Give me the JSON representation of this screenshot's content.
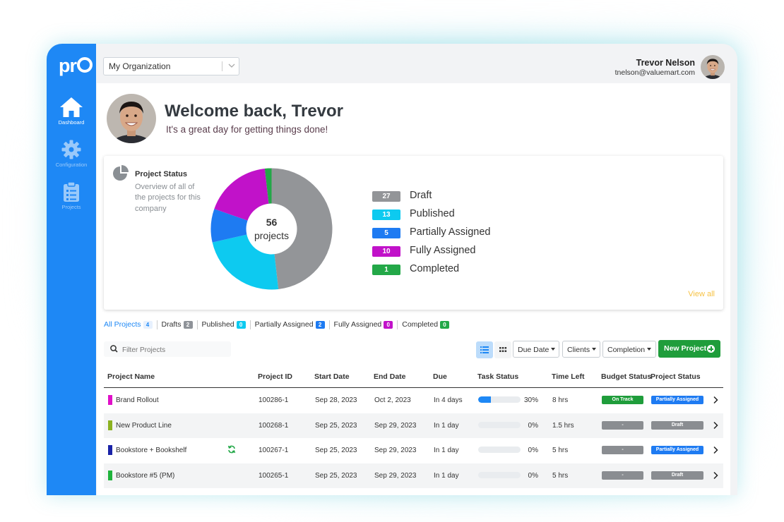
{
  "app": {
    "logo": "pr"
  },
  "sidebar": {
    "items": [
      {
        "label": "Dashboard",
        "icon": "home-icon",
        "active": true
      },
      {
        "label": "Configuration",
        "icon": "gear-icon",
        "active": false
      },
      {
        "label": "Projects",
        "icon": "clipboard-icon",
        "active": false
      }
    ]
  },
  "header": {
    "org_select": "My Organization",
    "user_name": "Trevor Nelson",
    "user_email": "tnelson@valuemart.com"
  },
  "welcome": {
    "title": "Welcome back, Trevor",
    "subtitle": "It's a great day for getting things done!"
  },
  "project_status": {
    "title": "Project Status",
    "description": "Overview of all of the projects for this company",
    "center_value": "56",
    "center_label": "projects",
    "view_all": "View all"
  },
  "chart_data": {
    "type": "pie",
    "total": 56,
    "slices": [
      {
        "label": "Draft",
        "value": 27,
        "color": "#939598"
      },
      {
        "label": "Published",
        "value": 13,
        "color": "#0dcaf0"
      },
      {
        "label": "Partially Assigned",
        "value": 5,
        "color": "#1e7bf2"
      },
      {
        "label": "Fully Assigned",
        "value": 10,
        "color": "#c112c9"
      },
      {
        "label": "Completed",
        "value": 1,
        "color": "#23a848"
      }
    ]
  },
  "filters": {
    "tabs": [
      {
        "label": "All Projects",
        "count": "4",
        "color": "#e7f1fe",
        "text": "#1e88f5",
        "active": true
      },
      {
        "label": "Drafts",
        "count": "2",
        "color": "#8f9399",
        "text": "#fff",
        "active": false
      },
      {
        "label": "Published",
        "count": "0",
        "color": "#0dcaf0",
        "text": "#fff",
        "active": false
      },
      {
        "label": "Partially Assigned",
        "count": "2",
        "color": "#1e7bf2",
        "text": "#fff",
        "active": false
      },
      {
        "label": "Fully Assigned",
        "count": "0",
        "color": "#c112c9",
        "text": "#fff",
        "active": false
      },
      {
        "label": "Completed",
        "count": "0",
        "color": "#23a848",
        "text": "#fff",
        "active": false
      }
    ],
    "search_placeholder": "Filter Projects",
    "due_date": "Due Date",
    "clients": "Clients",
    "completion": "Completion",
    "new_project": "New Project"
  },
  "table": {
    "columns": [
      "Project Name",
      "Project ID",
      "Start Date",
      "End Date",
      "Due",
      "Task Status",
      "Time Left",
      "Budget Status",
      "Project Status"
    ],
    "rows": [
      {
        "name": "Brand Rollout",
        "color": "#e010c8",
        "id": "100286-1",
        "start": "Sep 28, 2023",
        "end": "Oct 2, 2023",
        "due": "In 4 days",
        "progress": 30,
        "pct": "30%",
        "time_left": "8 hrs",
        "budget": "On Track",
        "budget_color": "#1f9d3b",
        "status": "Partially Assigned",
        "status_color": "#1e7bf2",
        "synced": false
      },
      {
        "name": "New Product Line",
        "color": "#8cb221",
        "id": "100268-1",
        "start": "Sep 25, 2023",
        "end": "Sep 29, 2023",
        "due": "In 1 day",
        "progress": 0,
        "pct": "0%",
        "time_left": "1.5 hrs",
        "budget": "-",
        "budget_color": "#8a8d91",
        "status": "Draft",
        "status_color": "#8a8d91",
        "synced": false
      },
      {
        "name": "Bookstore + Bookshelf",
        "color": "#1a23a8",
        "id": "100267-1",
        "start": "Sep 25, 2023",
        "end": "Sep 29, 2023",
        "due": "In 1 day",
        "progress": 0,
        "pct": "0%",
        "time_left": "5 hrs",
        "budget": "-",
        "budget_color": "#8a8d91",
        "status": "Partially Assigned",
        "status_color": "#1e7bf2",
        "synced": true
      },
      {
        "name": "Bookstore #5 (PM)",
        "color": "#1fb33c",
        "id": "100265-1",
        "start": "Sep 25, 2023",
        "end": "Sep 29, 2023",
        "due": "In 1 day",
        "progress": 0,
        "pct": "0%",
        "time_left": "5 hrs",
        "budget": "-",
        "budget_color": "#8a8d91",
        "status": "Draft",
        "status_color": "#8a8d91",
        "synced": false
      }
    ]
  }
}
